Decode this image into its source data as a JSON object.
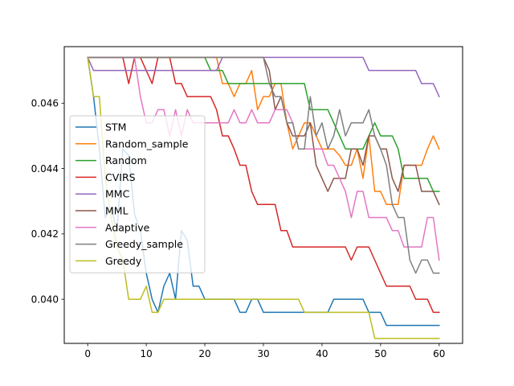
{
  "chart_data": {
    "type": "line",
    "title": "",
    "xlabel": "",
    "ylabel": "",
    "xlim": [
      -4,
      64
    ],
    "ylim": [
      0.03865,
      0.04773
    ],
    "xticks": [
      0,
      10,
      20,
      30,
      40,
      50,
      60
    ],
    "xtick_labels": [
      "0",
      "10",
      "20",
      "30",
      "40",
      "50",
      "60"
    ],
    "yticks": [
      0.04,
      0.042,
      0.044,
      0.046
    ],
    "ytick_labels": [
      "0.040",
      "0.042",
      "0.044",
      "0.046"
    ],
    "grid": false,
    "legend_placement": "center-left",
    "x": [
      0,
      1,
      2,
      3,
      4,
      5,
      6,
      7,
      8,
      9,
      10,
      11,
      12,
      13,
      14,
      15,
      16,
      17,
      18,
      19,
      20,
      21,
      22,
      23,
      24,
      25,
      26,
      27,
      28,
      29,
      30,
      31,
      32,
      33,
      34,
      35,
      36,
      37,
      38,
      39,
      40,
      41,
      42,
      43,
      44,
      45,
      46,
      47,
      48,
      49,
      50,
      51,
      52,
      53,
      54,
      55,
      56,
      57,
      58,
      59,
      60
    ],
    "series": [
      {
        "name": "STM",
        "color": "#1f77b4",
        "values": [
          0.0474,
          0.0462,
          0.0446,
          0.0425,
          0.0428,
          0.0421,
          0.0446,
          0.0444,
          0.0426,
          0.0421,
          0.0408,
          0.04,
          0.0396,
          0.0404,
          0.0408,
          0.04,
          0.0421,
          0.0418,
          0.0404,
          0.0404,
          0.04,
          0.04,
          0.04,
          0.04,
          0.04,
          0.04,
          0.0396,
          0.0396,
          0.04,
          0.04,
          0.0396,
          0.0396,
          0.0396,
          0.0396,
          0.0396,
          0.0396,
          0.0396,
          0.0396,
          0.0396,
          0.0396,
          0.0396,
          0.0396,
          0.04,
          0.04,
          0.04,
          0.04,
          0.04,
          0.04,
          0.0396,
          0.0396,
          0.0396,
          0.0392,
          0.0392,
          0.0392,
          0.0392,
          0.0392,
          0.0392,
          0.0392,
          0.0392,
          0.0392,
          0.0392
        ]
      },
      {
        "name": "Random_sample",
        "color": "#ff7f0e",
        "values": [
          0.0474,
          0.0474,
          0.0474,
          0.0474,
          0.0474,
          0.0474,
          0.0474,
          0.0474,
          0.0474,
          0.0474,
          0.0474,
          0.0474,
          0.0474,
          0.0474,
          0.0474,
          0.0474,
          0.0474,
          0.0474,
          0.0474,
          0.0474,
          0.0474,
          0.0474,
          0.0474,
          0.0466,
          0.0466,
          0.0462,
          0.0466,
          0.0466,
          0.047,
          0.0458,
          0.0462,
          0.0462,
          0.0466,
          0.0466,
          0.0454,
          0.0446,
          0.045,
          0.0454,
          0.0454,
          0.045,
          0.0446,
          0.0446,
          0.0446,
          0.0444,
          0.0441,
          0.0441,
          0.0446,
          0.0437,
          0.045,
          0.0433,
          0.0433,
          0.0429,
          0.0429,
          0.0429,
          0.0441,
          0.0441,
          0.0441,
          0.0441,
          0.0446,
          0.045,
          0.0446
        ]
      },
      {
        "name": "Random",
        "color": "#2ca02c",
        "values": [
          0.0474,
          0.0474,
          0.0474,
          0.0474,
          0.0474,
          0.0474,
          0.0474,
          0.0474,
          0.0474,
          0.0474,
          0.0474,
          0.0474,
          0.0474,
          0.0474,
          0.0474,
          0.0474,
          0.0474,
          0.0474,
          0.0474,
          0.0474,
          0.0474,
          0.047,
          0.047,
          0.047,
          0.0466,
          0.0466,
          0.0466,
          0.0466,
          0.0466,
          0.0466,
          0.0466,
          0.0466,
          0.0466,
          0.0466,
          0.0466,
          0.0466,
          0.0466,
          0.0466,
          0.0458,
          0.0458,
          0.0458,
          0.0458,
          0.0454,
          0.045,
          0.0446,
          0.0446,
          0.0446,
          0.0446,
          0.045,
          0.0454,
          0.045,
          0.045,
          0.045,
          0.0446,
          0.0437,
          0.0437,
          0.0437,
          0.0437,
          0.0437,
          0.0433,
          0.0433
        ]
      },
      {
        "name": "CVIRS",
        "color": "#d62728",
        "values": [
          0.0474,
          0.0474,
          0.0474,
          0.0474,
          0.0474,
          0.0474,
          0.0474,
          0.0466,
          0.0474,
          0.0474,
          0.047,
          0.0466,
          0.0474,
          0.0474,
          0.0474,
          0.0466,
          0.0466,
          0.0462,
          0.0462,
          0.0462,
          0.0462,
          0.0462,
          0.0458,
          0.045,
          0.045,
          0.0446,
          0.0441,
          0.0441,
          0.0433,
          0.0429,
          0.0429,
          0.0429,
          0.0429,
          0.0421,
          0.0421,
          0.0416,
          0.0416,
          0.0416,
          0.0416,
          0.0416,
          0.0416,
          0.0416,
          0.0416,
          0.0416,
          0.0416,
          0.0412,
          0.0416,
          0.0416,
          0.0416,
          0.0412,
          0.0408,
          0.0404,
          0.0404,
          0.0404,
          0.0404,
          0.0404,
          0.04,
          0.04,
          0.04,
          0.0396,
          0.0396
        ]
      },
      {
        "name": "MMC",
        "color": "#9467bd",
        "values": [
          0.0474,
          0.047,
          0.047,
          0.047,
          0.047,
          0.047,
          0.047,
          0.047,
          0.047,
          0.047,
          0.047,
          0.047,
          0.047,
          0.047,
          0.047,
          0.047,
          0.047,
          0.047,
          0.047,
          0.047,
          0.047,
          0.047,
          0.047,
          0.0474,
          0.0474,
          0.0474,
          0.0474,
          0.0474,
          0.0474,
          0.0474,
          0.0474,
          0.0474,
          0.0474,
          0.0474,
          0.0474,
          0.0474,
          0.0474,
          0.0474,
          0.0474,
          0.0474,
          0.0474,
          0.0474,
          0.0474,
          0.0474,
          0.0474,
          0.0474,
          0.0474,
          0.0474,
          0.047,
          0.047,
          0.047,
          0.047,
          0.047,
          0.047,
          0.047,
          0.047,
          0.047,
          0.0466,
          0.0466,
          0.0466,
          0.0462
        ]
      },
      {
        "name": "MML",
        "color": "#8c564b",
        "values": [
          0.0474,
          0.0474,
          0.0474,
          0.0474,
          0.0474,
          0.0474,
          0.0474,
          0.0474,
          0.0474,
          0.0474,
          0.0474,
          0.0474,
          0.0474,
          0.0474,
          0.0474,
          0.0474,
          0.0474,
          0.0474,
          0.0474,
          0.0474,
          0.0474,
          0.0474,
          0.0474,
          0.0474,
          0.0474,
          0.0474,
          0.0474,
          0.0474,
          0.0474,
          0.0474,
          0.0474,
          0.047,
          0.0458,
          0.0462,
          0.0454,
          0.045,
          0.045,
          0.045,
          0.0454,
          0.0441,
          0.0437,
          0.0433,
          0.0437,
          0.0437,
          0.0437,
          0.0446,
          0.0446,
          0.0441,
          0.045,
          0.045,
          0.0446,
          0.0446,
          0.0437,
          0.0433,
          0.0441,
          0.0441,
          0.0441,
          0.0433,
          0.0433,
          0.0433,
          0.0429
        ]
      },
      {
        "name": "Adaptive",
        "color": "#e377c2",
        "values": [
          0.0474,
          0.0474,
          0.0474,
          0.0474,
          0.0474,
          0.0474,
          0.0474,
          0.0474,
          0.0474,
          0.0462,
          0.0454,
          0.0454,
          0.0458,
          0.0458,
          0.045,
          0.0458,
          0.045,
          0.0458,
          0.0454,
          0.0454,
          0.0454,
          0.0454,
          0.0454,
          0.0454,
          0.0454,
          0.0458,
          0.0454,
          0.0454,
          0.0458,
          0.0454,
          0.0454,
          0.0454,
          0.0458,
          0.0458,
          0.0458,
          0.0454,
          0.0446,
          0.0446,
          0.0446,
          0.0446,
          0.0446,
          0.0441,
          0.0441,
          0.0437,
          0.0433,
          0.0425,
          0.0433,
          0.0433,
          0.0425,
          0.0425,
          0.0425,
          0.0425,
          0.0421,
          0.0421,
          0.0416,
          0.0416,
          0.0416,
          0.0416,
          0.0425,
          0.0425,
          0.0412
        ]
      },
      {
        "name": "Greedy_sample",
        "color": "#7f7f7f",
        "values": [
          0.0474,
          0.0474,
          0.0474,
          0.0474,
          0.0474,
          0.0474,
          0.0474,
          0.0474,
          0.0474,
          0.0474,
          0.0474,
          0.0474,
          0.0474,
          0.0474,
          0.0474,
          0.0474,
          0.0474,
          0.0474,
          0.0474,
          0.0474,
          0.0474,
          0.0474,
          0.0474,
          0.0474,
          0.0474,
          0.0474,
          0.0474,
          0.0474,
          0.0474,
          0.0474,
          0.0474,
          0.0466,
          0.0462,
          0.0462,
          0.0454,
          0.0454,
          0.0446,
          0.0446,
          0.0462,
          0.045,
          0.0454,
          0.0446,
          0.045,
          0.0458,
          0.045,
          0.0454,
          0.0454,
          0.0454,
          0.0458,
          0.045,
          0.0446,
          0.0441,
          0.0429,
          0.0425,
          0.0425,
          0.0412,
          0.0408,
          0.0412,
          0.0412,
          0.0408,
          0.0408
        ]
      },
      {
        "name": "Greedy",
        "color": "#bcbd22",
        "values": [
          0.0474,
          0.0462,
          0.0462,
          0.0437,
          0.0425,
          0.0416,
          0.0412,
          0.04,
          0.04,
          0.04,
          0.0404,
          0.0396,
          0.0396,
          0.04,
          0.04,
          0.04,
          0.04,
          0.04,
          0.04,
          0.04,
          0.04,
          0.04,
          0.04,
          0.04,
          0.04,
          0.04,
          0.04,
          0.04,
          0.04,
          0.04,
          0.04,
          0.04,
          0.04,
          0.04,
          0.04,
          0.04,
          0.04,
          0.0396,
          0.0396,
          0.0396,
          0.0396,
          0.0396,
          0.0396,
          0.0396,
          0.0396,
          0.0396,
          0.0396,
          0.0396,
          0.0396,
          0.0388,
          0.0388,
          0.0388,
          0.0388,
          0.0388,
          0.0388,
          0.0388,
          0.0388,
          0.0388,
          0.0388,
          0.0388,
          0.0388
        ]
      }
    ]
  }
}
